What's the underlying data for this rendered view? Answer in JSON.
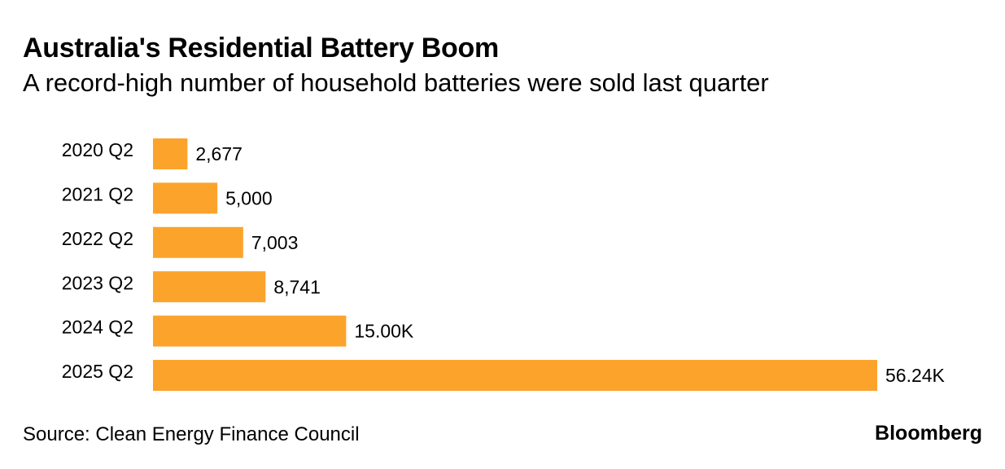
{
  "header": {
    "title": "Australia's Residential Battery Boom",
    "subtitle": "A record-high number of household batteries were sold last quarter"
  },
  "footer": {
    "source": "Source: Clean Energy Finance Council",
    "brand": "Bloomberg"
  },
  "colors": {
    "bar": "#FCA32C",
    "text": "#000000"
  },
  "chart_data": {
    "type": "bar",
    "orientation": "horizontal",
    "categories": [
      "2020 Q2",
      "2021 Q2",
      "2022 Q2",
      "2023 Q2",
      "2024 Q2",
      "2025 Q2"
    ],
    "values": [
      2677,
      5000,
      7003,
      8741,
      15000,
      56240
    ],
    "value_labels": [
      "2,677",
      "5,000",
      "7,003",
      "8,741",
      "15.00K",
      "56.24K"
    ],
    "xlim": [
      0,
      56240
    ],
    "grid": false,
    "legend": "none"
  }
}
